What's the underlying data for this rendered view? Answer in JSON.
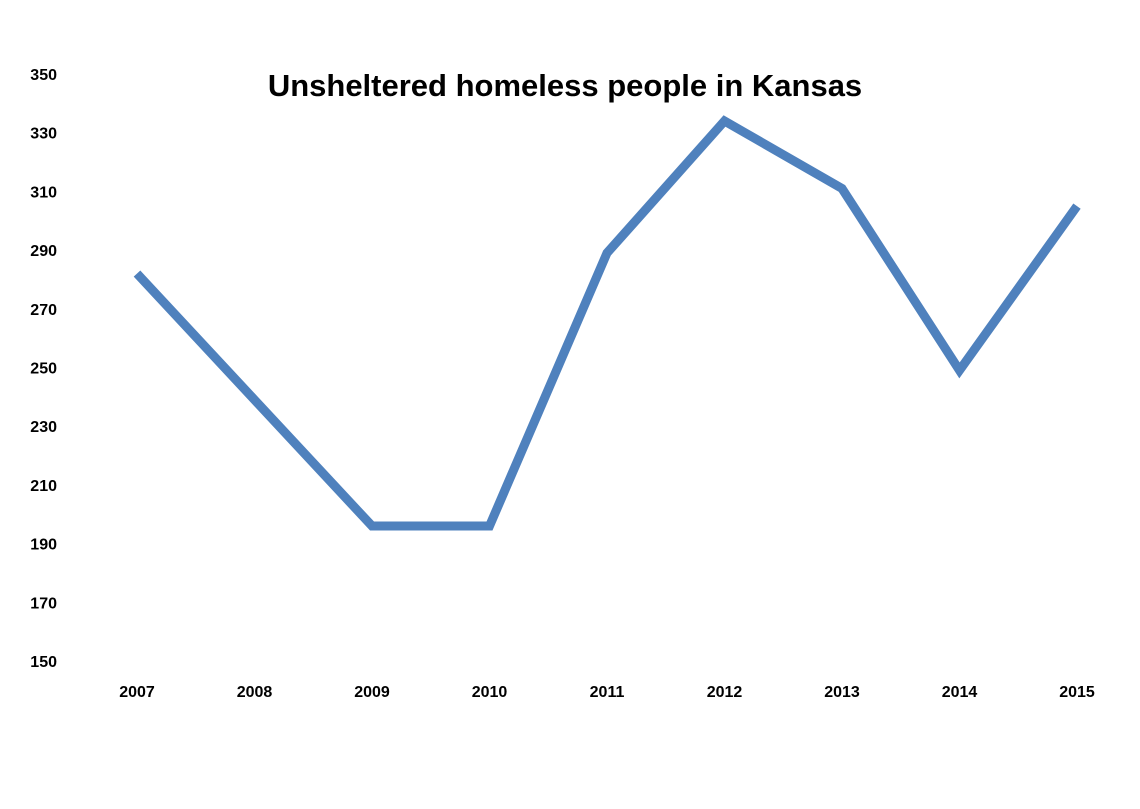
{
  "chart_data": {
    "type": "line",
    "title": "Unsheltered homeless people in Kansas",
    "xlabel": "",
    "ylabel": "",
    "categories": [
      "2007",
      "2008",
      "2009",
      "2010",
      "2011",
      "2012",
      "2013",
      "2014",
      "2015"
    ],
    "series": [
      {
        "values": [
          282,
          239,
          196,
          196,
          289,
          334,
          311,
          249,
          305
        ],
        "color": "#4F81BD"
      }
    ],
    "ylim": [
      150,
      350
    ],
    "yticks": [
      350,
      330,
      310,
      290,
      270,
      250,
      230,
      210,
      190,
      170,
      150
    ],
    "grid": false,
    "legend": "none"
  }
}
